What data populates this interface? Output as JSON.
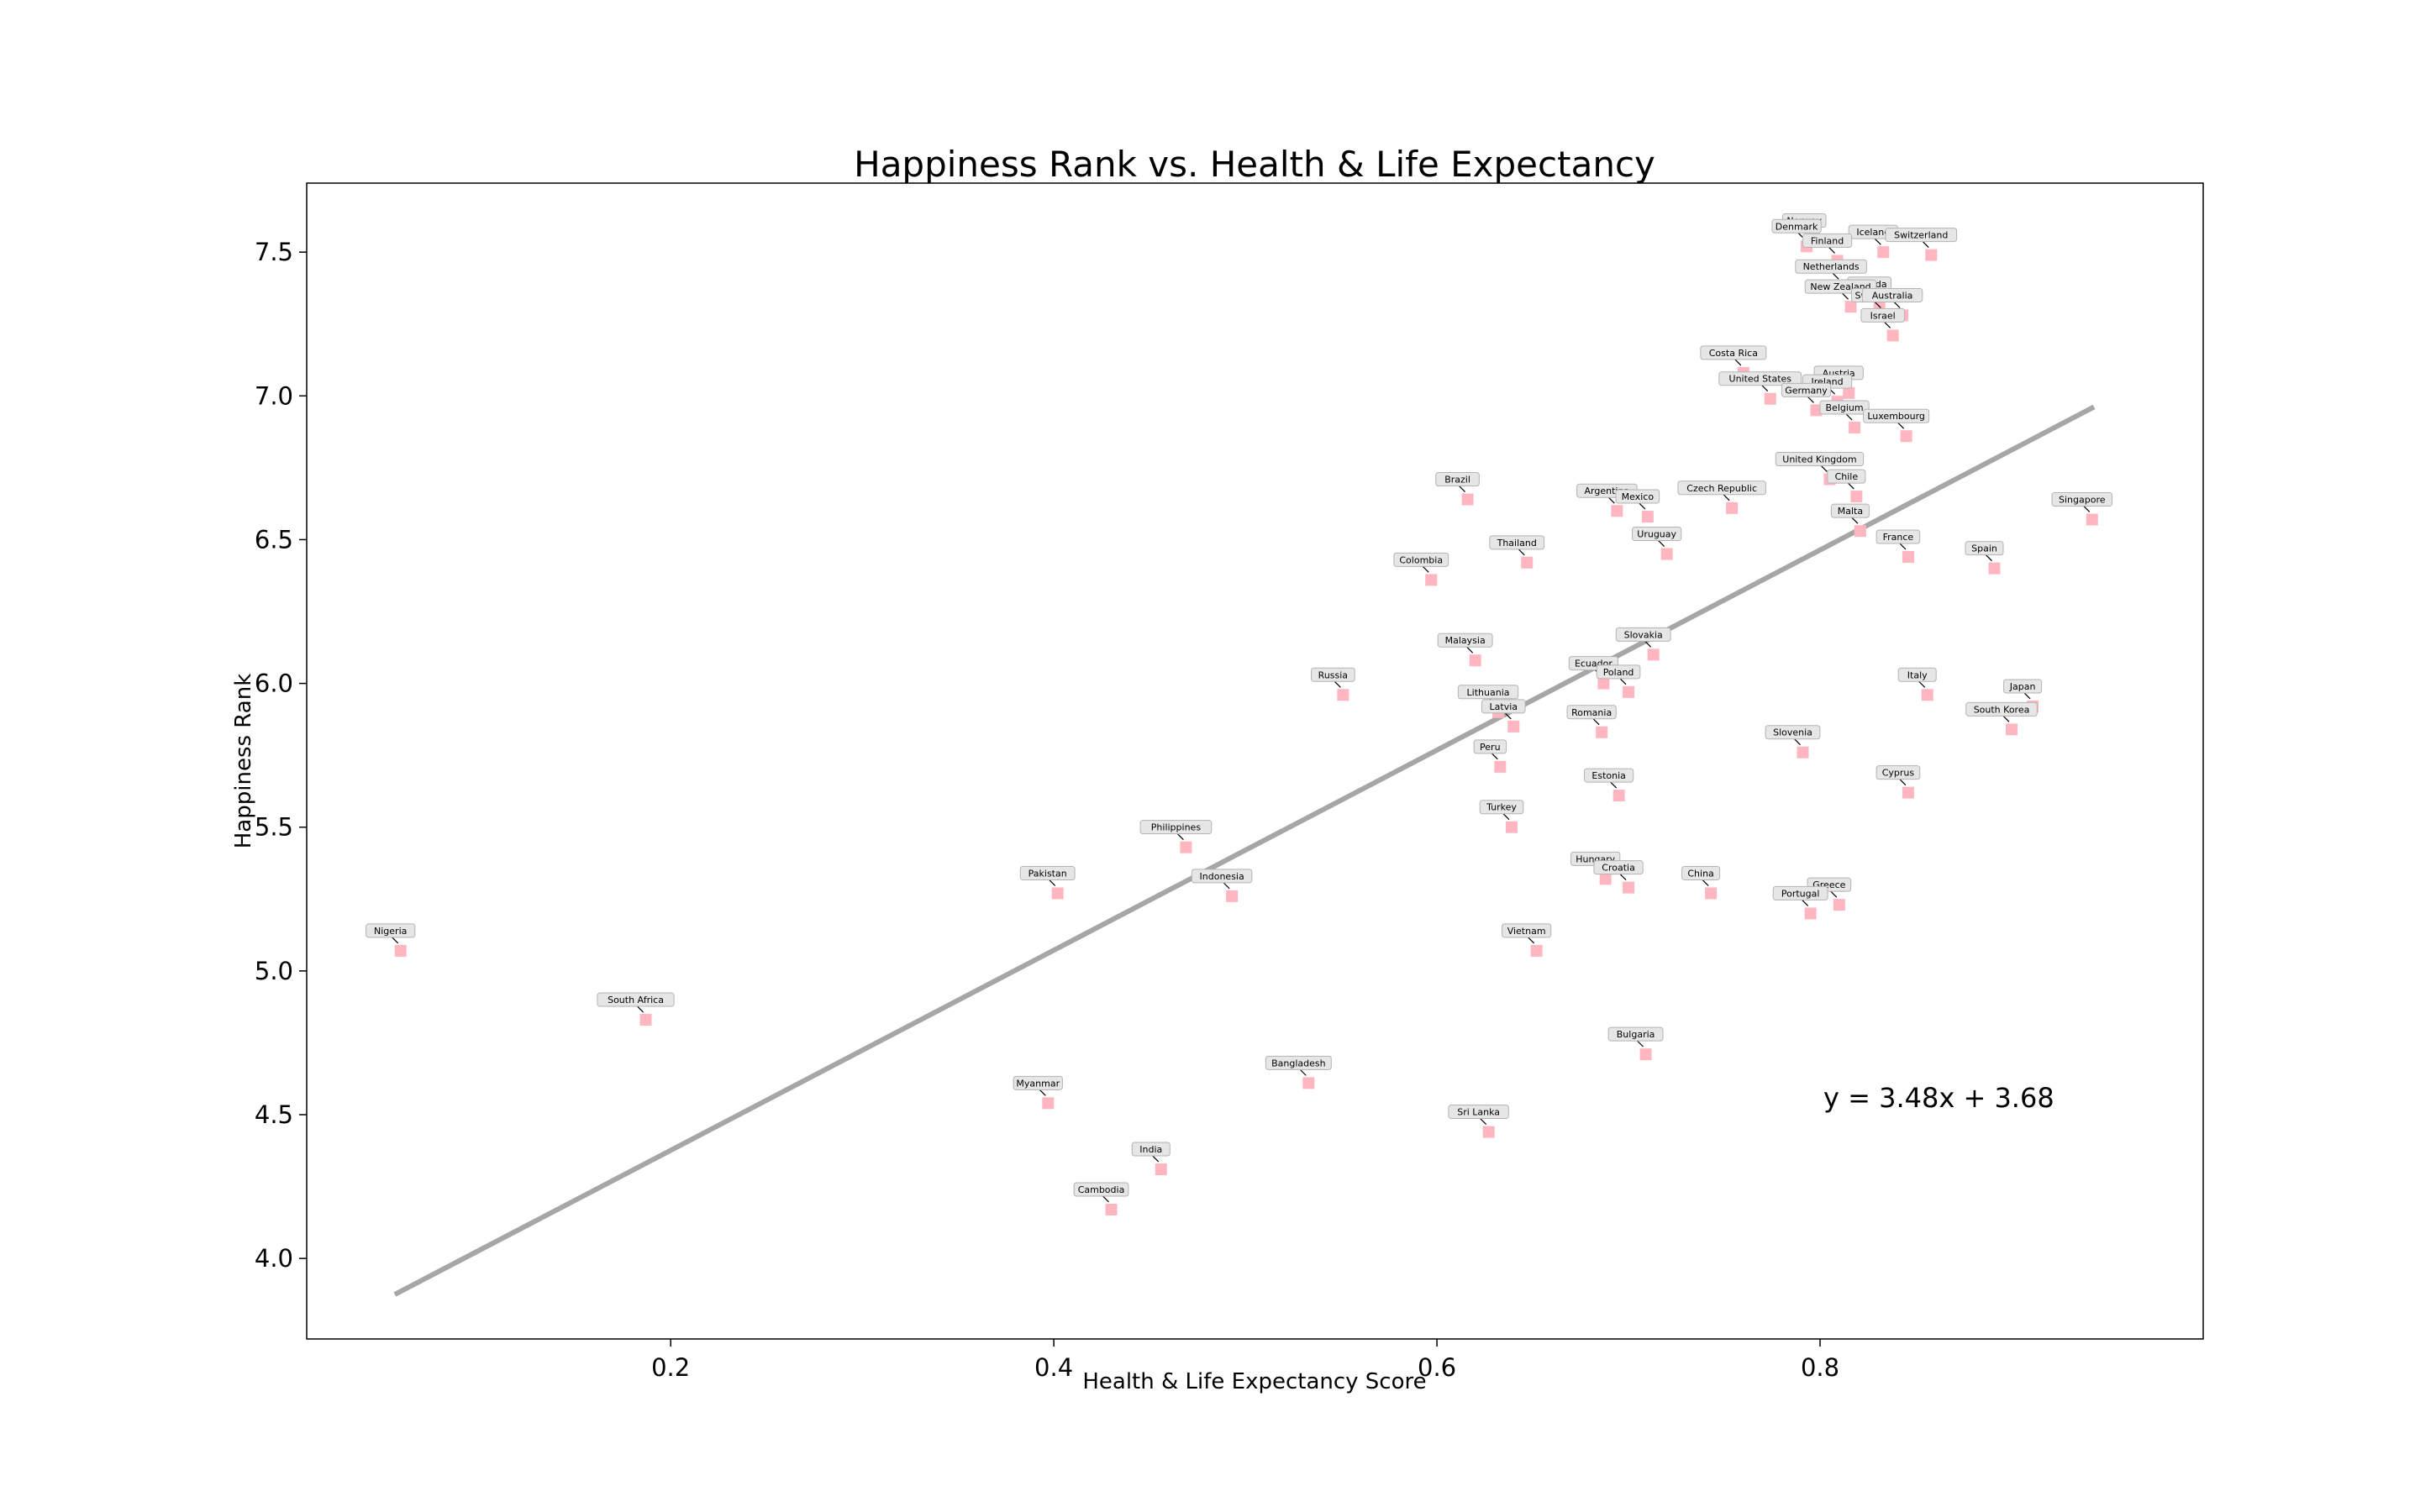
{
  "chart_data": {
    "type": "scatter",
    "title": "Happiness Rank vs. Health & Life Expectancy",
    "xlabel": "Health & Life Expectancy Score",
    "ylabel": "Happiness Rank",
    "xlim": [
      0.01,
      1.0
    ],
    "ylim": [
      3.72,
      7.74
    ],
    "xticks": [
      0.2,
      0.4,
      0.6,
      0.8
    ],
    "yticks": [
      4.0,
      4.5,
      5.0,
      5.5,
      6.0,
      6.5,
      7.0,
      7.5
    ],
    "grid": false,
    "marker_color": "#ffb6c1",
    "label_box_color": "#e6e6e6",
    "trendline": {
      "equation": "y = 3.48x + 3.68",
      "slope": 3.48,
      "intercept": 3.68,
      "x_range": [
        0.056,
        0.943
      ],
      "color": "#a6a6a6"
    },
    "points": [
      {
        "label": "Norway",
        "x": 0.797,
        "y": 7.54
      },
      {
        "label": "Denmark",
        "x": 0.793,
        "y": 7.52
      },
      {
        "label": "Iceland",
        "x": 0.833,
        "y": 7.5
      },
      {
        "label": "Switzerland",
        "x": 0.858,
        "y": 7.49
      },
      {
        "label": "Finland",
        "x": 0.809,
        "y": 7.47
      },
      {
        "label": "Netherlands",
        "x": 0.811,
        "y": 7.38
      },
      {
        "label": "Canada",
        "x": 0.831,
        "y": 7.32
      },
      {
        "label": "New Zealand",
        "x": 0.816,
        "y": 7.31
      },
      {
        "label": "Sweden",
        "x": 0.833,
        "y": 7.28
      },
      {
        "label": "Australia",
        "x": 0.843,
        "y": 7.28
      },
      {
        "label": "Israel",
        "x": 0.838,
        "y": 7.21
      },
      {
        "label": "Costa Rica",
        "x": 0.76,
        "y": 7.08
      },
      {
        "label": "Austria",
        "x": 0.815,
        "y": 7.01
      },
      {
        "label": "United States",
        "x": 0.774,
        "y": 6.99
      },
      {
        "label": "Ireland",
        "x": 0.809,
        "y": 6.98
      },
      {
        "label": "Germany",
        "x": 0.798,
        "y": 6.95
      },
      {
        "label": "Belgium",
        "x": 0.818,
        "y": 6.89
      },
      {
        "label": "Luxembourg",
        "x": 0.845,
        "y": 6.86
      },
      {
        "label": "United Kingdom",
        "x": 0.805,
        "y": 6.71
      },
      {
        "label": "Chile",
        "x": 0.819,
        "y": 6.65
      },
      {
        "label": "Brazil",
        "x": 0.616,
        "y": 6.64
      },
      {
        "label": "Argentina",
        "x": 0.694,
        "y": 6.6
      },
      {
        "label": "Mexico",
        "x": 0.71,
        "y": 6.58
      },
      {
        "label": "Czech Republic",
        "x": 0.754,
        "y": 6.61
      },
      {
        "label": "Singapore",
        "x": 0.942,
        "y": 6.57
      },
      {
        "label": "Malta",
        "x": 0.821,
        "y": 6.53
      },
      {
        "label": "Uruguay",
        "x": 0.72,
        "y": 6.45
      },
      {
        "label": "France",
        "x": 0.846,
        "y": 6.44
      },
      {
        "label": "Thailand",
        "x": 0.647,
        "y": 6.42
      },
      {
        "label": "Spain",
        "x": 0.891,
        "y": 6.4
      },
      {
        "label": "Colombia",
        "x": 0.597,
        "y": 6.36
      },
      {
        "label": "Slovakia",
        "x": 0.713,
        "y": 6.1
      },
      {
        "label": "Malaysia",
        "x": 0.62,
        "y": 6.08
      },
      {
        "label": "Ecuador",
        "x": 0.687,
        "y": 6.0
      },
      {
        "label": "Poland",
        "x": 0.7,
        "y": 5.97
      },
      {
        "label": "Russia",
        "x": 0.551,
        "y": 5.96
      },
      {
        "label": "Italy",
        "x": 0.856,
        "y": 5.96
      },
      {
        "label": "Japan",
        "x": 0.911,
        "y": 5.92
      },
      {
        "label": "Lithuania",
        "x": 0.632,
        "y": 5.9
      },
      {
        "label": "Latvia",
        "x": 0.64,
        "y": 5.85
      },
      {
        "label": "South Korea",
        "x": 0.9,
        "y": 5.84
      },
      {
        "label": "Romania",
        "x": 0.686,
        "y": 5.83
      },
      {
        "label": "Slovenia",
        "x": 0.791,
        "y": 5.76
      },
      {
        "label": "Peru",
        "x": 0.633,
        "y": 5.71
      },
      {
        "label": "Cyprus",
        "x": 0.846,
        "y": 5.62
      },
      {
        "label": "Estonia",
        "x": 0.695,
        "y": 5.61
      },
      {
        "label": "Turkey",
        "x": 0.639,
        "y": 5.5
      },
      {
        "label": "Philippines",
        "x": 0.469,
        "y": 5.43
      },
      {
        "label": "Hungary",
        "x": 0.688,
        "y": 5.32
      },
      {
        "label": "Croatia",
        "x": 0.7,
        "y": 5.29
      },
      {
        "label": "China",
        "x": 0.743,
        "y": 5.27
      },
      {
        "label": "Pakistan",
        "x": 0.402,
        "y": 5.27
      },
      {
        "label": "Indonesia",
        "x": 0.493,
        "y": 5.26
      },
      {
        "label": "Greece",
        "x": 0.81,
        "y": 5.23
      },
      {
        "label": "Portugal",
        "x": 0.795,
        "y": 5.2
      },
      {
        "label": "Nigeria",
        "x": 0.059,
        "y": 5.07
      },
      {
        "label": "Vietnam",
        "x": 0.652,
        "y": 5.07
      },
      {
        "label": "South Africa",
        "x": 0.187,
        "y": 4.83
      },
      {
        "label": "Bulgaria",
        "x": 0.709,
        "y": 4.71
      },
      {
        "label": "Bangladesh",
        "x": 0.533,
        "y": 4.61
      },
      {
        "label": "Myanmar",
        "x": 0.397,
        "y": 4.54
      },
      {
        "label": "Sri Lanka",
        "x": 0.627,
        "y": 4.44
      },
      {
        "label": "India",
        "x": 0.456,
        "y": 4.31
      },
      {
        "label": "Cambodia",
        "x": 0.43,
        "y": 4.17
      }
    ]
  }
}
